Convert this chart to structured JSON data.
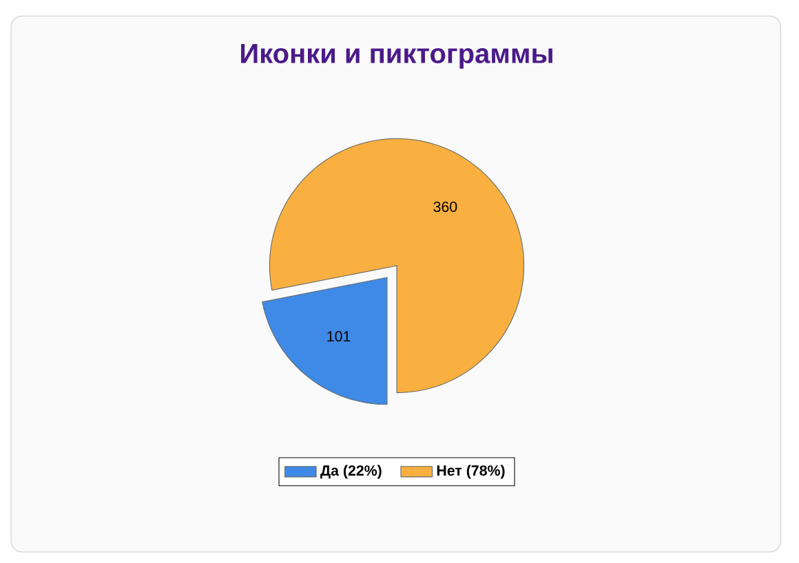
{
  "chart_data": {
    "type": "pie",
    "title": "Иконки и пиктограммы",
    "categories": [
      "Да (22%)",
      "Нет (78%)"
    ],
    "values": [
      101,
      360
    ],
    "colors": [
      "#3f8ae6",
      "#f9b040"
    ],
    "data_labels": true,
    "legend": "bottom"
  }
}
